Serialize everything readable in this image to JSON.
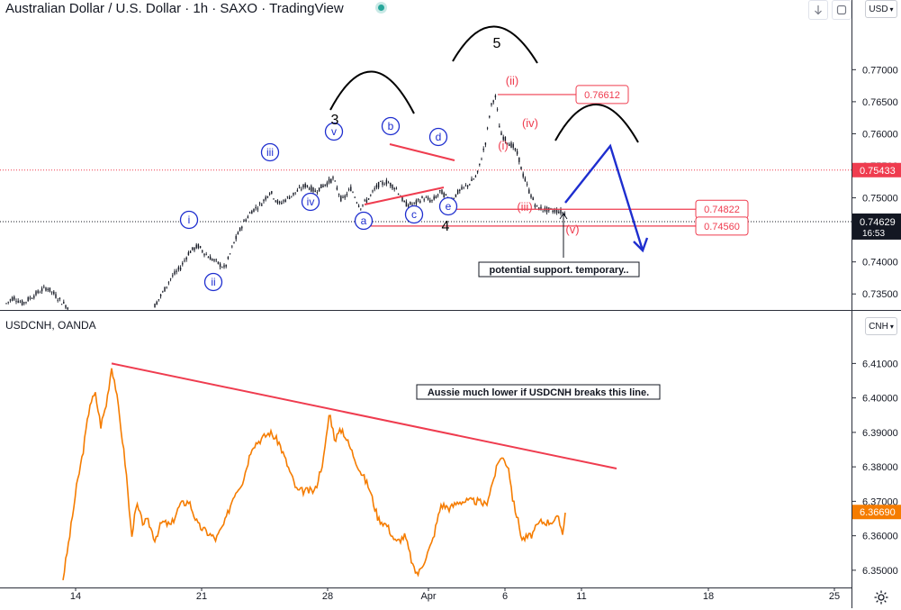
{
  "header": {
    "title": "Australian Dollar / U.S. Dollar · 1h · SAXO · TradingView",
    "currency": "USD",
    "currency2": "CNH",
    "pane2_title": "USDCNH, OANDA",
    "arrow_down_icon": "arrow-down-icon",
    "settings_icon": "gear-icon"
  },
  "chart_data": [
    {
      "type": "candlestick",
      "symbol": "Australian Dollar / U.S. Dollar",
      "ylim": [
        0.7325,
        0.7775
      ],
      "y_ticks": [
        "0.77000",
        "0.76500",
        "0.76000",
        "0.75500",
        "0.75000",
        "0.74500",
        "0.74000",
        "0.73500"
      ],
      "x_ticks": [
        "14",
        "21",
        "28",
        "Apr",
        "6",
        "11",
        "18",
        "25"
      ],
      "path_x": [
        7,
        15,
        25,
        35,
        45,
        52,
        60,
        68,
        75,
        172,
        180,
        190,
        200,
        210,
        220,
        230,
        240,
        250,
        260,
        270,
        280,
        290,
        300,
        310,
        320,
        330,
        340,
        350,
        360,
        370,
        380,
        390,
        400,
        410,
        420,
        430,
        440,
        450,
        460,
        470,
        480,
        490,
        500,
        510,
        520,
        530,
        540,
        545,
        550,
        556,
        562,
        570,
        576,
        580,
        588,
        596,
        604,
        612,
        620,
        628
      ],
      "path_y": [
        0.7335,
        0.7345,
        0.7335,
        0.7345,
        0.7355,
        0.736,
        0.735,
        0.7338,
        0.733,
        0.7332,
        0.735,
        0.7375,
        0.739,
        0.7415,
        0.7425,
        0.741,
        0.74,
        0.739,
        0.743,
        0.746,
        0.748,
        0.749,
        0.751,
        0.749,
        0.75,
        0.751,
        0.752,
        0.751,
        0.752,
        0.753,
        0.7495,
        0.7515,
        0.7485,
        0.75,
        0.752,
        0.7525,
        0.7515,
        0.749,
        0.749,
        0.75,
        0.7495,
        0.751,
        0.7495,
        0.751,
        0.752,
        0.7535,
        0.759,
        0.764,
        0.7661,
        0.76,
        0.759,
        0.758,
        0.7565,
        0.754,
        0.751,
        0.7485,
        0.7482,
        0.748,
        0.748,
        0.7475
      ],
      "horizontal_levels": [
        {
          "value": 0.76612,
          "label": "0.76612"
        },
        {
          "value": 0.74822,
          "label": "0.74822"
        },
        {
          "value": 0.7456,
          "label": "0.74560"
        }
      ],
      "dotted_level": {
        "value": 0.75433,
        "label": "0.75433"
      },
      "last_price": {
        "value": 0.74629,
        "label": "0.74629",
        "countdown": "16:53"
      },
      "wave_labels_blue": [
        "i",
        "ii",
        "iii",
        "iv",
        "v",
        "a",
        "b",
        "c",
        "d",
        "e"
      ],
      "wave_labels_black": [
        "3",
        "4",
        "5"
      ],
      "wave_labels_red": [
        "(i)",
        "(ii)",
        "(iii)",
        "(iv)",
        "(v)"
      ],
      "annotation": "potential support. temporary..",
      "colors": {
        "candles": "#131722",
        "red": "#ef3c4f",
        "blue": "#1e2ecf",
        "orange": "#f57c00",
        "dark_label": "#131722"
      }
    },
    {
      "type": "line",
      "symbol": "USDCNH, OANDA",
      "ylim": [
        6.345,
        6.425
      ],
      "y_ticks": [
        "6.41000",
        "6.40000",
        "6.39000",
        "6.38000",
        "6.37000",
        "6.36000",
        "6.35000"
      ],
      "series": [
        {
          "x": [
            70,
            78,
            85,
            92,
            100,
            106,
            112,
            118,
            124,
            128,
            135,
            140,
            146,
            152,
            158,
            165,
            172,
            180,
            190,
            200,
            210,
            220,
            230,
            240,
            250,
            260,
            270,
            280,
            290,
            300,
            310,
            320,
            330,
            340,
            350,
            360,
            366,
            372,
            380,
            390,
            400,
            410,
            420,
            430,
            440,
            450,
            460,
            465,
            470,
            480,
            490,
            500,
            510,
            520,
            530,
            540,
            550,
            556,
            560,
            565,
            570,
            575,
            580,
            590,
            600,
            610,
            620,
            625,
            628
          ],
          "y": [
            6.3475,
            6.361,
            6.374,
            6.384,
            6.3985,
            6.401,
            6.392,
            6.398,
            6.409,
            6.404,
            6.39,
            6.379,
            6.36,
            6.369,
            6.364,
            6.364,
            6.359,
            6.364,
            6.363,
            6.369,
            6.37,
            6.363,
            6.361,
            6.359,
            6.364,
            6.372,
            6.376,
            6.386,
            6.388,
            6.39,
            6.387,
            6.38,
            6.373,
            6.373,
            6.373,
            6.383,
            6.396,
            6.388,
            6.391,
            6.385,
            6.379,
            6.374,
            6.365,
            6.363,
            6.358,
            6.36,
            6.35,
            6.349,
            6.352,
            6.358,
            6.369,
            6.368,
            6.37,
            6.37,
            6.37,
            6.369,
            6.378,
            6.383,
            6.382,
            6.38,
            6.37,
            6.365,
            6.359,
            6.36,
            6.364,
            6.364,
            6.365,
            6.361,
            6.3669
          ]
        }
      ],
      "trendline": {
        "x": [
          124,
          685
        ],
        "y": [
          6.41,
          6.3795
        ]
      },
      "last_price": {
        "value": 6.3669,
        "label": "6.36690"
      },
      "annotation": "Aussie much lower if USDCNH breaks this line."
    }
  ]
}
